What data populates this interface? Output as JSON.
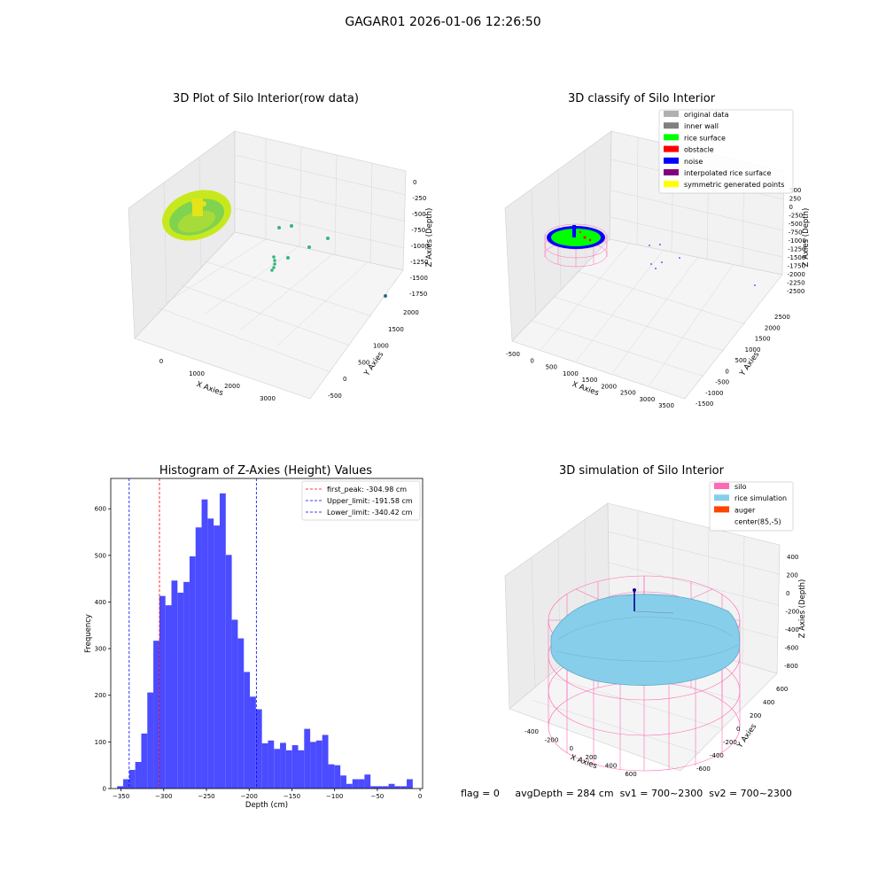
{
  "suptitle": "GAGAR01 2026-01-06 12:26:50",
  "status": {
    "flag": "flag = 0",
    "avg_depth": "avgDepth = 284 cm",
    "sv1": "sv1 = 700~2300",
    "sv2": "sv2 = 700~2300"
  },
  "chart_data": [
    {
      "type": "scatter",
      "title": "3D Plot of Silo Interior(row data)",
      "xlabel": "X Axies",
      "ylabel": "Y Axies",
      "zlabel": "Z Axies (Depth)",
      "x_ticks": [
        "0",
        "1000",
        "2000",
        "3000"
      ],
      "y_ticks": [
        "-500",
        "0",
        "500",
        "1000",
        "1500",
        "2000"
      ],
      "z_ticks": [
        "0",
        "-250",
        "-500",
        "-750",
        "-1000",
        "-1250",
        "-1500",
        "-1750"
      ],
      "colors": {
        "surface": "#c8e81e",
        "surface_mid": "#7fd34e",
        "outliers": "#35b779",
        "low": "#31688e"
      }
    },
    {
      "type": "scatter",
      "title": "3D classify of Silo Interior",
      "xlabel": "X Axies",
      "ylabel": "Y Axies",
      "zlabel": "Z Axies (Depth)",
      "x_ticks": [
        "-500",
        "0",
        "500",
        "1000",
        "1500",
        "2000",
        "2500",
        "3000",
        "3500"
      ],
      "y_ticks": [
        "-1500",
        "-1000",
        "-500",
        "0",
        "500",
        "1000",
        "1500",
        "2000",
        "2500"
      ],
      "z_ticks": [
        "500",
        "250",
        "0",
        "-250",
        "-500",
        "-750",
        "-1000",
        "-1250",
        "-1500",
        "-1750",
        "-2000",
        "-2250",
        "-2500"
      ],
      "legend": [
        {
          "label": "original data",
          "color": "#b0b0b0"
        },
        {
          "label": "inner wall",
          "color": "#808080"
        },
        {
          "label": "rice surface",
          "color": "#00ff00"
        },
        {
          "label": "obstacle",
          "color": "#ff0000"
        },
        {
          "label": "noise",
          "color": "#0000ff"
        },
        {
          "label": "interpolated rice surface",
          "color": "#800080"
        },
        {
          "label": "symmetric generated points",
          "color": "#ffff00"
        }
      ]
    },
    {
      "type": "bar",
      "title": "Histogram of Z-Axies (Height) Values",
      "xlabel": "Depth (cm)",
      "ylabel": "Frequency",
      "xlim": [
        -362,
        3
      ],
      "ylim": [
        0,
        665
      ],
      "x_ticks": [
        -350,
        -300,
        -250,
        -200,
        -150,
        -100,
        -50,
        0
      ],
      "y_ticks": [
        0,
        100,
        200,
        300,
        400,
        500,
        600
      ],
      "bin_start": -354.5,
      "bin_width": 7.06,
      "values": [
        5,
        20,
        40,
        57,
        118,
        206,
        317,
        413,
        393,
        446,
        420,
        443,
        498,
        560,
        620,
        579,
        564,
        633,
        501,
        362,
        322,
        250,
        197,
        170,
        97,
        103,
        85,
        98,
        82,
        93,
        82,
        128,
        100,
        103,
        115,
        52,
        50,
        28,
        10,
        20,
        20,
        30,
        5,
        5,
        5,
        10,
        5,
        5,
        20
      ],
      "bar_color": "#4b4bff",
      "lines": [
        {
          "label": "first_peak: -304.98 cm",
          "x": -304.98,
          "color": "#ff0000"
        },
        {
          "label": "Upper_limit: -191.58 cm",
          "x": -191.58,
          "color": "#0000ff"
        },
        {
          "label": "Lower_limit: -340.42 cm",
          "x": -340.42,
          "color": "#0000ff"
        }
      ],
      "legend_position": "top-right"
    },
    {
      "type": "scatter",
      "title": "3D simulation of Silo Interior",
      "xlabel": "X Axies",
      "ylabel": "Y Axies",
      "zlabel": "Z Axies (Depth)",
      "x_ticks": [
        "-400",
        "-200",
        "0",
        "200",
        "400",
        "600"
      ],
      "y_ticks": [
        "-600",
        "-400",
        "-200",
        "0",
        "200",
        "400",
        "600"
      ],
      "z_ticks": [
        "400",
        "200",
        "0",
        "-200",
        "-400",
        "-600",
        "-800"
      ],
      "legend": [
        {
          "label": "silo",
          "color": "#ff69b4"
        },
        {
          "label": "rice simulation",
          "color": "#87ceeb"
        },
        {
          "label": "auger",
          "color": "#ff4500"
        },
        {
          "label": "center(85,-5)",
          "color": ""
        }
      ]
    }
  ]
}
